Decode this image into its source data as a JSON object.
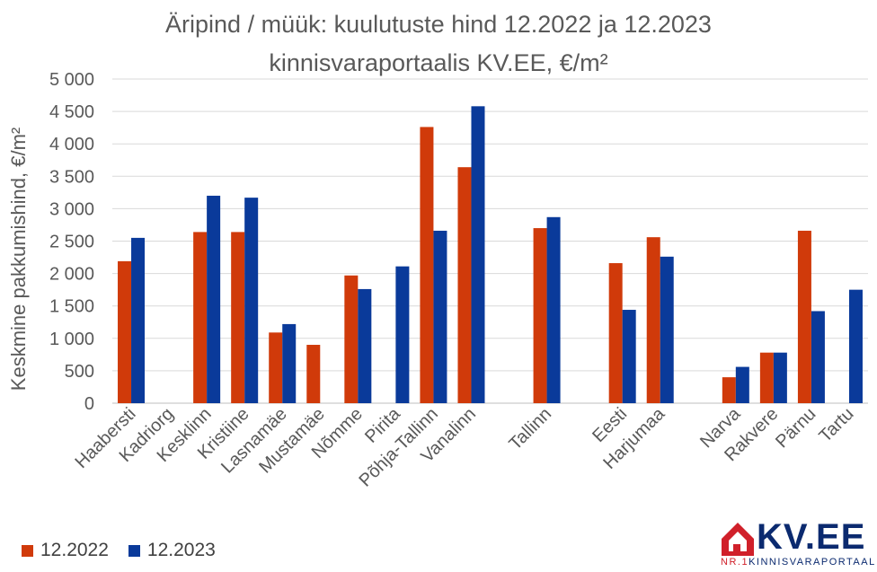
{
  "title_line1": "Äripind / müük: kuulutuste hind 12.2022 ja 12.2023",
  "title_line2": "kinnisvaraportaalis KV.EE, €/m²",
  "chart_data": {
    "type": "bar",
    "title": "Äripind / müük: kuulutuste hind 12.2022 ja 12.2023 kinnisvaraportaalis KV.EE, €/m²",
    "ylabel": "Keskmine pakkumishind, €/m²",
    "xlabel": "",
    "ylim": [
      0,
      5000
    ],
    "yticks": [
      0,
      500,
      1000,
      1500,
      2000,
      2500,
      3000,
      3500,
      4000,
      4500,
      5000
    ],
    "ytick_labels": [
      "0",
      "500",
      "1 000",
      "1 500",
      "2 000",
      "2 500",
      "3 000",
      "3 500",
      "4 000",
      "4 500",
      "5 000"
    ],
    "grid": true,
    "legend": "bottom-left",
    "categories": [
      "Haabersti",
      "Kadriorg",
      "Kesklinn",
      "Kristiine",
      "Lasnamäe",
      "Mustamäe",
      "Nõmme",
      "Pirita",
      "Põhja-Tallinn",
      "Vanalinn",
      "",
      "Tallinn",
      "",
      "Eesti",
      "Harjumaa",
      "",
      "Narva",
      "Rakvere",
      "Pärnu",
      "Tartu"
    ],
    "series": [
      {
        "name": "12.2022",
        "color": "#d03a0a",
        "values": [
          2190,
          null,
          2640,
          2640,
          1090,
          900,
          1970,
          null,
          4260,
          3640,
          null,
          2700,
          null,
          2160,
          2560,
          null,
          400,
          780,
          2660,
          null
        ]
      },
      {
        "name": "12.2023",
        "color": "#0a3a9a",
        "values": [
          2550,
          null,
          3200,
          3170,
          1220,
          null,
          1760,
          2110,
          2660,
          4580,
          null,
          2870,
          null,
          1440,
          2260,
          null,
          560,
          780,
          1420,
          1750
        ]
      }
    ]
  },
  "logo": {
    "text": "KV.EE",
    "sub_prefix": "NR.1",
    "sub_text": "KINNISVARAPORTAAL",
    "accent_color": "#d0202a",
    "brand_color": "#0b2a6f"
  }
}
